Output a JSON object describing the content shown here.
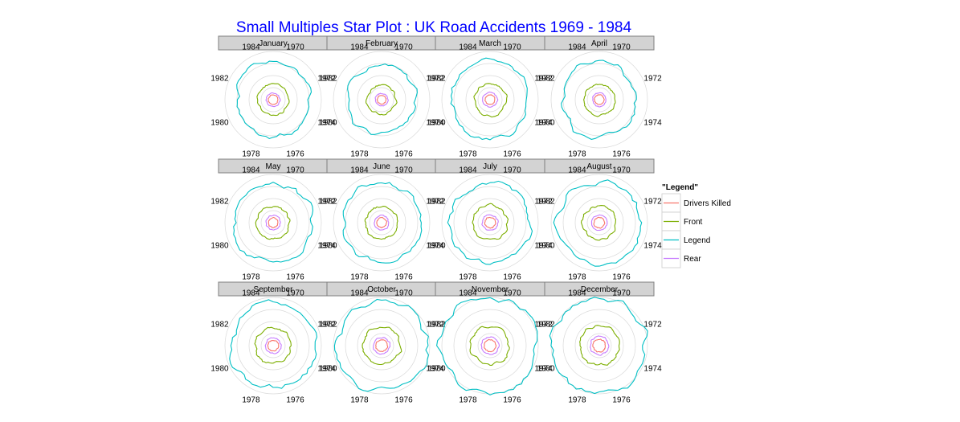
{
  "colors": {
    "title": "#0000ff",
    "strip_fill": "#d3d3d3",
    "strip_border": "#7f7f7f",
    "grid": "#d9d9d9",
    "legend_box_border": "#cccccc"
  },
  "chart_data": {
    "type": "radar",
    "title": "Small Multiples Star Plot : UK Road Accidents 1969 - 1984",
    "theta_tick_labels": [
      "1970",
      "1972",
      "1974",
      "1976",
      "1978",
      "1980",
      "1982",
      "1984"
    ],
    "grid": true,
    "legend": {
      "title": "\"Legend\"",
      "position": "right",
      "items": [
        {
          "label": "Drivers Killed",
          "color": "#f8766d"
        },
        {
          "label": "Front",
          "color": "#7cae00"
        },
        {
          "label": "Legend",
          "color": "#00bfc4"
        },
        {
          "label": "Rear",
          "color": "#c77cff"
        }
      ]
    },
    "panels": [
      {
        "month": "January",
        "series": {
          "Drivers Killed": 0.1,
          "Front": 0.32,
          "Legend": 0.78,
          "Rear": 0.14
        }
      },
      {
        "month": "February",
        "series": {
          "Drivers Killed": 0.09,
          "Front": 0.3,
          "Legend": 0.72,
          "Rear": 0.13
        }
      },
      {
        "month": "March",
        "series": {
          "Drivers Killed": 0.1,
          "Front": 0.33,
          "Legend": 0.8,
          "Rear": 0.15
        }
      },
      {
        "month": "April",
        "series": {
          "Drivers Killed": 0.1,
          "Front": 0.32,
          "Legend": 0.78,
          "Rear": 0.14
        }
      },
      {
        "month": "May",
        "series": {
          "Drivers Killed": 0.1,
          "Front": 0.34,
          "Legend": 0.82,
          "Rear": 0.15
        }
      },
      {
        "month": "June",
        "series": {
          "Drivers Killed": 0.1,
          "Front": 0.34,
          "Legend": 0.82,
          "Rear": 0.15
        }
      },
      {
        "month": "July",
        "series": {
          "Drivers Killed": 0.11,
          "Front": 0.36,
          "Legend": 0.84,
          "Rear": 0.16
        }
      },
      {
        "month": "August",
        "series": {
          "Drivers Killed": 0.11,
          "Front": 0.35,
          "Legend": 0.86,
          "Rear": 0.16
        }
      },
      {
        "month": "September",
        "series": {
          "Drivers Killed": 0.11,
          "Front": 0.37,
          "Legend": 0.88,
          "Rear": 0.16
        }
      },
      {
        "month": "October",
        "series": {
          "Drivers Killed": 0.12,
          "Front": 0.39,
          "Legend": 0.93,
          "Rear": 0.17
        }
      },
      {
        "month": "November",
        "series": {
          "Drivers Killed": 0.12,
          "Front": 0.4,
          "Legend": 1.0,
          "Rear": 0.18
        }
      },
      {
        "month": "December",
        "series": {
          "Drivers Killed": 0.13,
          "Front": 0.41,
          "Legend": 1.0,
          "Rear": 0.19
        }
      }
    ]
  }
}
